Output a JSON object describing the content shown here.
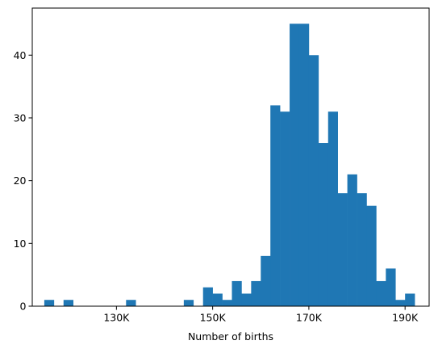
{
  "chart_data": {
    "type": "bar",
    "subtype": "histogram",
    "title": "",
    "xlabel": "Number of births",
    "ylabel": "",
    "xlim": [
      112500,
      195000
    ],
    "ylim": [
      0,
      47.5
    ],
    "bin_width": 2000,
    "grid": false,
    "legend": "none",
    "bar_color": "#1f77b4",
    "x_ticks": [
      {
        "value": 130000,
        "label": "130K"
      },
      {
        "value": 150000,
        "label": "150K"
      },
      {
        "value": 170000,
        "label": "170K"
      },
      {
        "value": 190000,
        "label": "190K"
      }
    ],
    "y_ticks": [
      {
        "value": 0,
        "label": "0"
      },
      {
        "value": 10,
        "label": "10"
      },
      {
        "value": 20,
        "label": "20"
      },
      {
        "value": 30,
        "label": "30"
      },
      {
        "value": 40,
        "label": "40"
      }
    ],
    "bins": [
      {
        "start": 115000,
        "end": 117000,
        "count": 1
      },
      {
        "start": 119000,
        "end": 121000,
        "count": 1
      },
      {
        "start": 132000,
        "end": 134000,
        "count": 1
      },
      {
        "start": 144000,
        "end": 146000,
        "count": 1
      },
      {
        "start": 148000,
        "end": 150000,
        "count": 3
      },
      {
        "start": 150000,
        "end": 152000,
        "count": 2
      },
      {
        "start": 152000,
        "end": 154000,
        "count": 1
      },
      {
        "start": 154000,
        "end": 156000,
        "count": 4
      },
      {
        "start": 156000,
        "end": 158000,
        "count": 2
      },
      {
        "start": 158000,
        "end": 160000,
        "count": 4
      },
      {
        "start": 160000,
        "end": 162000,
        "count": 8
      },
      {
        "start": 162000,
        "end": 164000,
        "count": 32
      },
      {
        "start": 164000,
        "end": 166000,
        "count": 31
      },
      {
        "start": 166000,
        "end": 168000,
        "count": 45
      },
      {
        "start": 168000,
        "end": 170000,
        "count": 45
      },
      {
        "start": 170000,
        "end": 172000,
        "count": 40
      },
      {
        "start": 172000,
        "end": 174000,
        "count": 26
      },
      {
        "start": 174000,
        "end": 176000,
        "count": 31
      },
      {
        "start": 176000,
        "end": 178000,
        "count": 18
      },
      {
        "start": 178000,
        "end": 180000,
        "count": 21
      },
      {
        "start": 180000,
        "end": 182000,
        "count": 18
      },
      {
        "start": 182000,
        "end": 184000,
        "count": 16
      },
      {
        "start": 184000,
        "end": 186000,
        "count": 4
      },
      {
        "start": 186000,
        "end": 188000,
        "count": 6
      },
      {
        "start": 188000,
        "end": 190000,
        "count": 1
      },
      {
        "start": 190000,
        "end": 192000,
        "count": 2
      }
    ]
  }
}
